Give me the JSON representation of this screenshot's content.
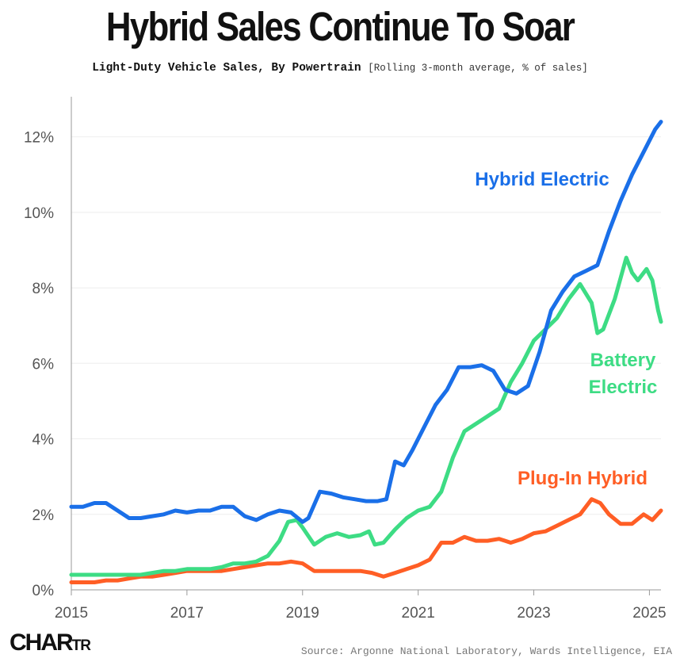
{
  "header": {
    "title": "Hybrid Sales Continue To Soar",
    "subtitle_main": "Light-Duty Vehicle Sales, By Powertrain",
    "subtitle_note": "[Rolling 3-month average, % of sales]"
  },
  "footer": {
    "logo_big": "CHAR",
    "logo_small": "TR",
    "source": "Source: Argonne National Laboratory, Wards Intelligence, EIA"
  },
  "chart_data": {
    "type": "line",
    "title": "Hybrid Sales Continue To Soar",
    "xlabel": "",
    "ylabel": "",
    "xlim": [
      2015.0,
      2025.2
    ],
    "ylim": [
      0,
      13
    ],
    "x_ticks": [
      2015,
      2017,
      2019,
      2021,
      2023,
      2025
    ],
    "x_tick_labels": [
      "2015",
      "2017",
      "2019",
      "2021",
      "2023",
      "2025"
    ],
    "y_ticks": [
      0,
      2,
      4,
      6,
      8,
      10,
      12
    ],
    "y_tick_labels": [
      "0%",
      "2%",
      "4%",
      "6%",
      "8%",
      "10%",
      "12%"
    ],
    "grid": "horizontal",
    "legend": "direct labels",
    "series": [
      {
        "name": "Hybrid Electric",
        "color": "#1a6fe8",
        "points": [
          [
            2015.0,
            2.2
          ],
          [
            2015.2,
            2.2
          ],
          [
            2015.4,
            2.3
          ],
          [
            2015.6,
            2.3
          ],
          [
            2015.8,
            2.1
          ],
          [
            2016.0,
            1.9
          ],
          [
            2016.2,
            1.9
          ],
          [
            2016.4,
            1.95
          ],
          [
            2016.6,
            2.0
          ],
          [
            2016.8,
            2.1
          ],
          [
            2017.0,
            2.05
          ],
          [
            2017.2,
            2.1
          ],
          [
            2017.4,
            2.1
          ],
          [
            2017.6,
            2.2
          ],
          [
            2017.8,
            2.2
          ],
          [
            2018.0,
            1.95
          ],
          [
            2018.2,
            1.85
          ],
          [
            2018.4,
            2.0
          ],
          [
            2018.6,
            2.1
          ],
          [
            2018.8,
            2.05
          ],
          [
            2019.0,
            1.8
          ],
          [
            2019.1,
            1.9
          ],
          [
            2019.3,
            2.6
          ],
          [
            2019.5,
            2.55
          ],
          [
            2019.7,
            2.45
          ],
          [
            2019.9,
            2.4
          ],
          [
            2020.1,
            2.35
          ],
          [
            2020.3,
            2.35
          ],
          [
            2020.45,
            2.4
          ],
          [
            2020.6,
            3.4
          ],
          [
            2020.75,
            3.3
          ],
          [
            2020.9,
            3.7
          ],
          [
            2021.1,
            4.3
          ],
          [
            2021.3,
            4.9
          ],
          [
            2021.5,
            5.3
          ],
          [
            2021.7,
            5.9
          ],
          [
            2021.9,
            5.9
          ],
          [
            2022.1,
            5.95
          ],
          [
            2022.3,
            5.8
          ],
          [
            2022.5,
            5.3
          ],
          [
            2022.7,
            5.2
          ],
          [
            2022.9,
            5.4
          ],
          [
            2023.1,
            6.3
          ],
          [
            2023.3,
            7.4
          ],
          [
            2023.5,
            7.9
          ],
          [
            2023.7,
            8.3
          ],
          [
            2023.9,
            8.45
          ],
          [
            2024.1,
            8.6
          ],
          [
            2024.3,
            9.5
          ],
          [
            2024.5,
            10.3
          ],
          [
            2024.7,
            11.0
          ],
          [
            2024.9,
            11.6
          ],
          [
            2025.1,
            12.2
          ],
          [
            2025.2,
            12.4
          ]
        ]
      },
      {
        "name": "Battery Electric",
        "color": "#3ddc84",
        "points": [
          [
            2015.0,
            0.4
          ],
          [
            2015.2,
            0.4
          ],
          [
            2015.4,
            0.4
          ],
          [
            2015.6,
            0.4
          ],
          [
            2015.8,
            0.4
          ],
          [
            2016.0,
            0.4
          ],
          [
            2016.2,
            0.4
          ],
          [
            2016.4,
            0.45
          ],
          [
            2016.6,
            0.5
          ],
          [
            2016.8,
            0.5
          ],
          [
            2017.0,
            0.55
          ],
          [
            2017.2,
            0.55
          ],
          [
            2017.4,
            0.55
          ],
          [
            2017.6,
            0.6
          ],
          [
            2017.8,
            0.7
          ],
          [
            2018.0,
            0.7
          ],
          [
            2018.2,
            0.75
          ],
          [
            2018.4,
            0.9
          ],
          [
            2018.6,
            1.3
          ],
          [
            2018.75,
            1.8
          ],
          [
            2018.9,
            1.85
          ],
          [
            2019.0,
            1.65
          ],
          [
            2019.2,
            1.2
          ],
          [
            2019.4,
            1.4
          ],
          [
            2019.6,
            1.5
          ],
          [
            2019.8,
            1.4
          ],
          [
            2020.0,
            1.45
          ],
          [
            2020.15,
            1.55
          ],
          [
            2020.25,
            1.2
          ],
          [
            2020.4,
            1.25
          ],
          [
            2020.6,
            1.6
          ],
          [
            2020.8,
            1.9
          ],
          [
            2021.0,
            2.1
          ],
          [
            2021.2,
            2.2
          ],
          [
            2021.4,
            2.6
          ],
          [
            2021.6,
            3.5
          ],
          [
            2021.8,
            4.2
          ],
          [
            2022.0,
            4.4
          ],
          [
            2022.2,
            4.6
          ],
          [
            2022.4,
            4.8
          ],
          [
            2022.6,
            5.5
          ],
          [
            2022.8,
            6.0
          ],
          [
            2023.0,
            6.6
          ],
          [
            2023.2,
            6.9
          ],
          [
            2023.4,
            7.2
          ],
          [
            2023.6,
            7.7
          ],
          [
            2023.8,
            8.1
          ],
          [
            2024.0,
            7.6
          ],
          [
            2024.1,
            6.8
          ],
          [
            2024.2,
            6.9
          ],
          [
            2024.4,
            7.7
          ],
          [
            2024.6,
            8.8
          ],
          [
            2024.7,
            8.4
          ],
          [
            2024.8,
            8.2
          ],
          [
            2024.95,
            8.5
          ],
          [
            2025.05,
            8.2
          ],
          [
            2025.15,
            7.4
          ],
          [
            2025.2,
            7.1
          ]
        ]
      },
      {
        "name": "Plug-In Hybrid",
        "color": "#ff5e25",
        "points": [
          [
            2015.0,
            0.2
          ],
          [
            2015.2,
            0.2
          ],
          [
            2015.4,
            0.2
          ],
          [
            2015.6,
            0.25
          ],
          [
            2015.8,
            0.25
          ],
          [
            2016.0,
            0.3
          ],
          [
            2016.2,
            0.35
          ],
          [
            2016.4,
            0.35
          ],
          [
            2016.6,
            0.4
          ],
          [
            2016.8,
            0.45
          ],
          [
            2017.0,
            0.5
          ],
          [
            2017.2,
            0.5
          ],
          [
            2017.4,
            0.5
          ],
          [
            2017.6,
            0.5
          ],
          [
            2017.8,
            0.55
          ],
          [
            2018.0,
            0.6
          ],
          [
            2018.2,
            0.65
          ],
          [
            2018.4,
            0.7
          ],
          [
            2018.6,
            0.7
          ],
          [
            2018.8,
            0.75
          ],
          [
            2019.0,
            0.7
          ],
          [
            2019.2,
            0.5
          ],
          [
            2019.4,
            0.5
          ],
          [
            2019.6,
            0.5
          ],
          [
            2019.8,
            0.5
          ],
          [
            2020.0,
            0.5
          ],
          [
            2020.2,
            0.45
          ],
          [
            2020.4,
            0.35
          ],
          [
            2020.6,
            0.45
          ],
          [
            2020.8,
            0.55
          ],
          [
            2021.0,
            0.65
          ],
          [
            2021.2,
            0.8
          ],
          [
            2021.4,
            1.25
          ],
          [
            2021.6,
            1.25
          ],
          [
            2021.8,
            1.4
          ],
          [
            2022.0,
            1.3
          ],
          [
            2022.2,
            1.3
          ],
          [
            2022.4,
            1.35
          ],
          [
            2022.6,
            1.25
          ],
          [
            2022.8,
            1.35
          ],
          [
            2023.0,
            1.5
          ],
          [
            2023.2,
            1.55
          ],
          [
            2023.4,
            1.7
          ],
          [
            2023.6,
            1.85
          ],
          [
            2023.8,
            2.0
          ],
          [
            2024.0,
            2.4
          ],
          [
            2024.15,
            2.3
          ],
          [
            2024.3,
            2.0
          ],
          [
            2024.5,
            1.75
          ],
          [
            2024.7,
            1.75
          ],
          [
            2024.9,
            2.0
          ],
          [
            2025.05,
            1.85
          ],
          [
            2025.2,
            2.1
          ]
        ]
      }
    ]
  },
  "direct_labels": {
    "hybrid_electric": "Hybrid Electric",
    "battery_electric_line1": "Battery",
    "battery_electric_line2": "Electric",
    "plug_in_hybrid": "Plug-In Hybrid"
  }
}
